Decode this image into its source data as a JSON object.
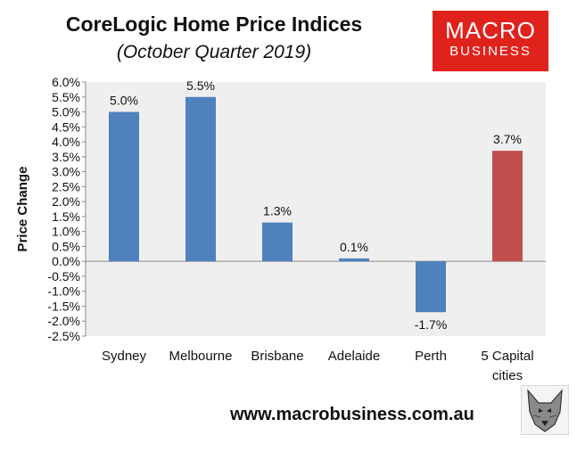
{
  "header": {
    "title": "CoreLogic Home Price Indices",
    "subtitle": "(October Quarter 2019)"
  },
  "brand": {
    "line1": "MACRO",
    "line2": "BUSINESS",
    "color": "#e0221c"
  },
  "footer": {
    "url": "www.macrobusiness.com.au"
  },
  "mascot_icon": "wolf-head-icon",
  "chart_data": {
    "type": "bar",
    "title": "CoreLogic Home Price Indices",
    "subtitle": "(October Quarter 2019)",
    "xlabel": "",
    "ylabel": "Price Change",
    "categories": [
      "Sydney",
      "Melbourne",
      "Brisbane",
      "Adelaide",
      "Perth",
      "5 Capital cities"
    ],
    "values": [
      5.0,
      5.5,
      1.3,
      0.1,
      -1.7,
      3.7
    ],
    "data_labels": [
      "5.0%",
      "5.5%",
      "1.3%",
      "0.1%",
      "-1.7%",
      "3.7%"
    ],
    "bar_colors": [
      "#4f81bd",
      "#4f81bd",
      "#4f81bd",
      "#4f81bd",
      "#4f81bd",
      "#c0504d"
    ],
    "ylim": [
      -2.5,
      6.0
    ],
    "yticks": [
      "6.0%",
      "5.5%",
      "5.0%",
      "4.5%",
      "4.0%",
      "3.5%",
      "3.0%",
      "2.5%",
      "2.0%",
      "1.5%",
      "1.0%",
      "0.5%",
      "0.0%",
      "-0.5%",
      "-1.0%",
      "-1.5%",
      "-2.0%",
      "-2.5%"
    ],
    "grid": false,
    "legend": "none",
    "plot_background": "#efefef"
  }
}
